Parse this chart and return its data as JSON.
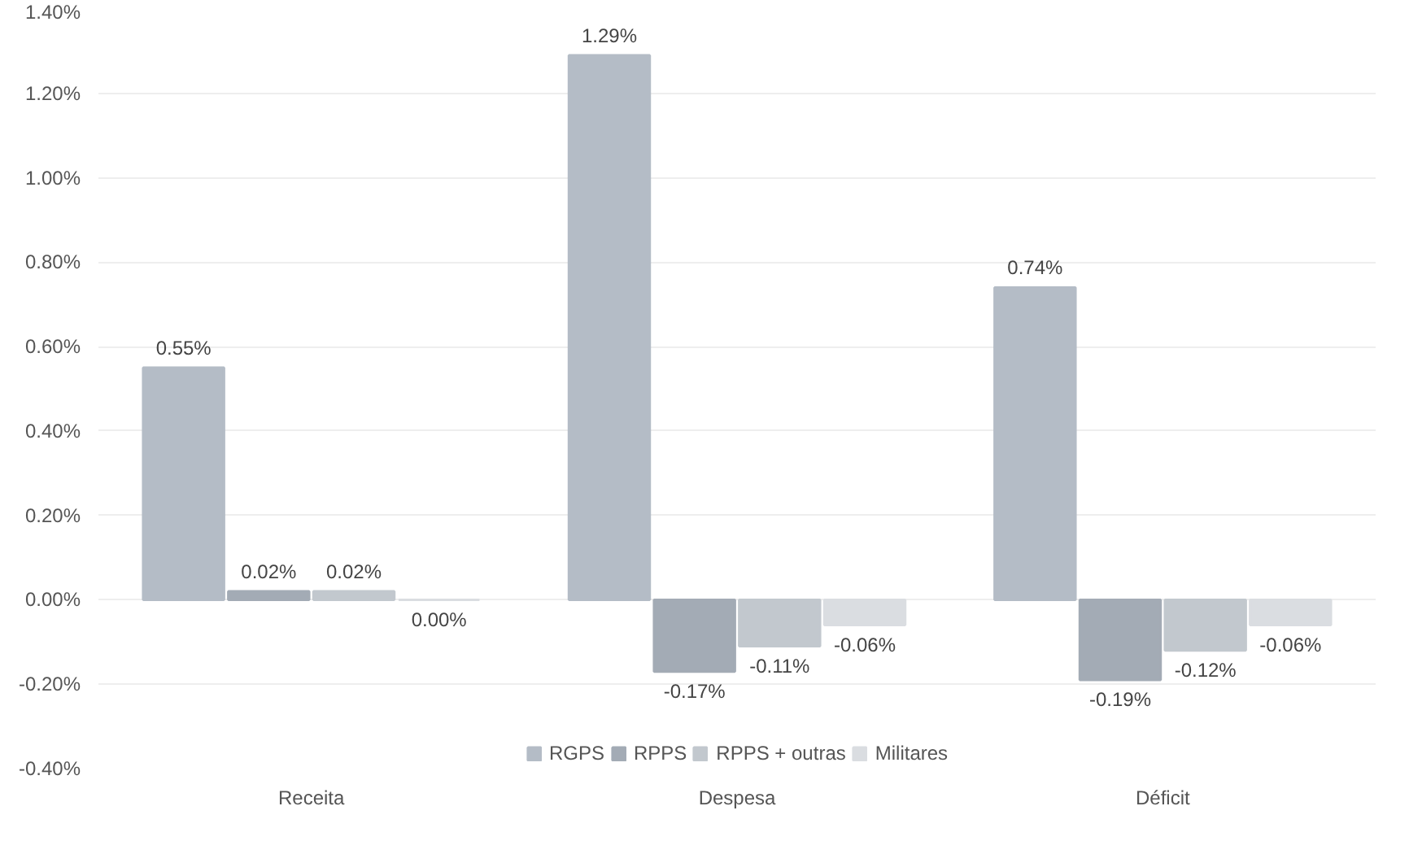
{
  "chart_data": {
    "type": "bar",
    "categories": [
      "Receita",
      "Despesa",
      "Déficit"
    ],
    "series": [
      {
        "name": "RGPS",
        "color": "#b4bcc6",
        "values": [
          0.55,
          1.29,
          0.74
        ],
        "value_labels": [
          "0.55%",
          "1.29%",
          "0.74%"
        ]
      },
      {
        "name": "RPPS",
        "color": "#a3abb5",
        "values": [
          0.02,
          -0.17,
          -0.19
        ],
        "value_labels": [
          "0.02%",
          "-0.17%",
          "-0.19%"
        ]
      },
      {
        "name": "RPPS + outras",
        "color": "#c2c8ce",
        "values": [
          0.02,
          -0.11,
          -0.12
        ],
        "value_labels": [
          "0.02%",
          "-0.11%",
          "-0.12%"
        ]
      },
      {
        "name": "Militares",
        "color": "#dadde1",
        "values": [
          0.0,
          -0.06,
          -0.06
        ],
        "value_labels": [
          "0.00%",
          "-0.06%",
          "-0.06%"
        ]
      }
    ],
    "ylim": [
      -0.4,
      1.4
    ],
    "yticks": [
      {
        "value": -0.4,
        "label": "-0.40%"
      },
      {
        "value": -0.2,
        "label": "-0.20%"
      },
      {
        "value": 0,
        "label": "0.00%"
      },
      {
        "value": 0.2,
        "label": "0.20%"
      },
      {
        "value": 0.4,
        "label": "0.40%"
      },
      {
        "value": 0.6,
        "label": "0.60%"
      },
      {
        "value": 0.8,
        "label": "0.80%"
      },
      {
        "value": 1.0,
        "label": "1.00%"
      },
      {
        "value": 1.2,
        "label": "1.20%"
      },
      {
        "value": 1.4,
        "label": "1.40%"
      }
    ],
    "grid": "y",
    "legend": "bottom"
  }
}
